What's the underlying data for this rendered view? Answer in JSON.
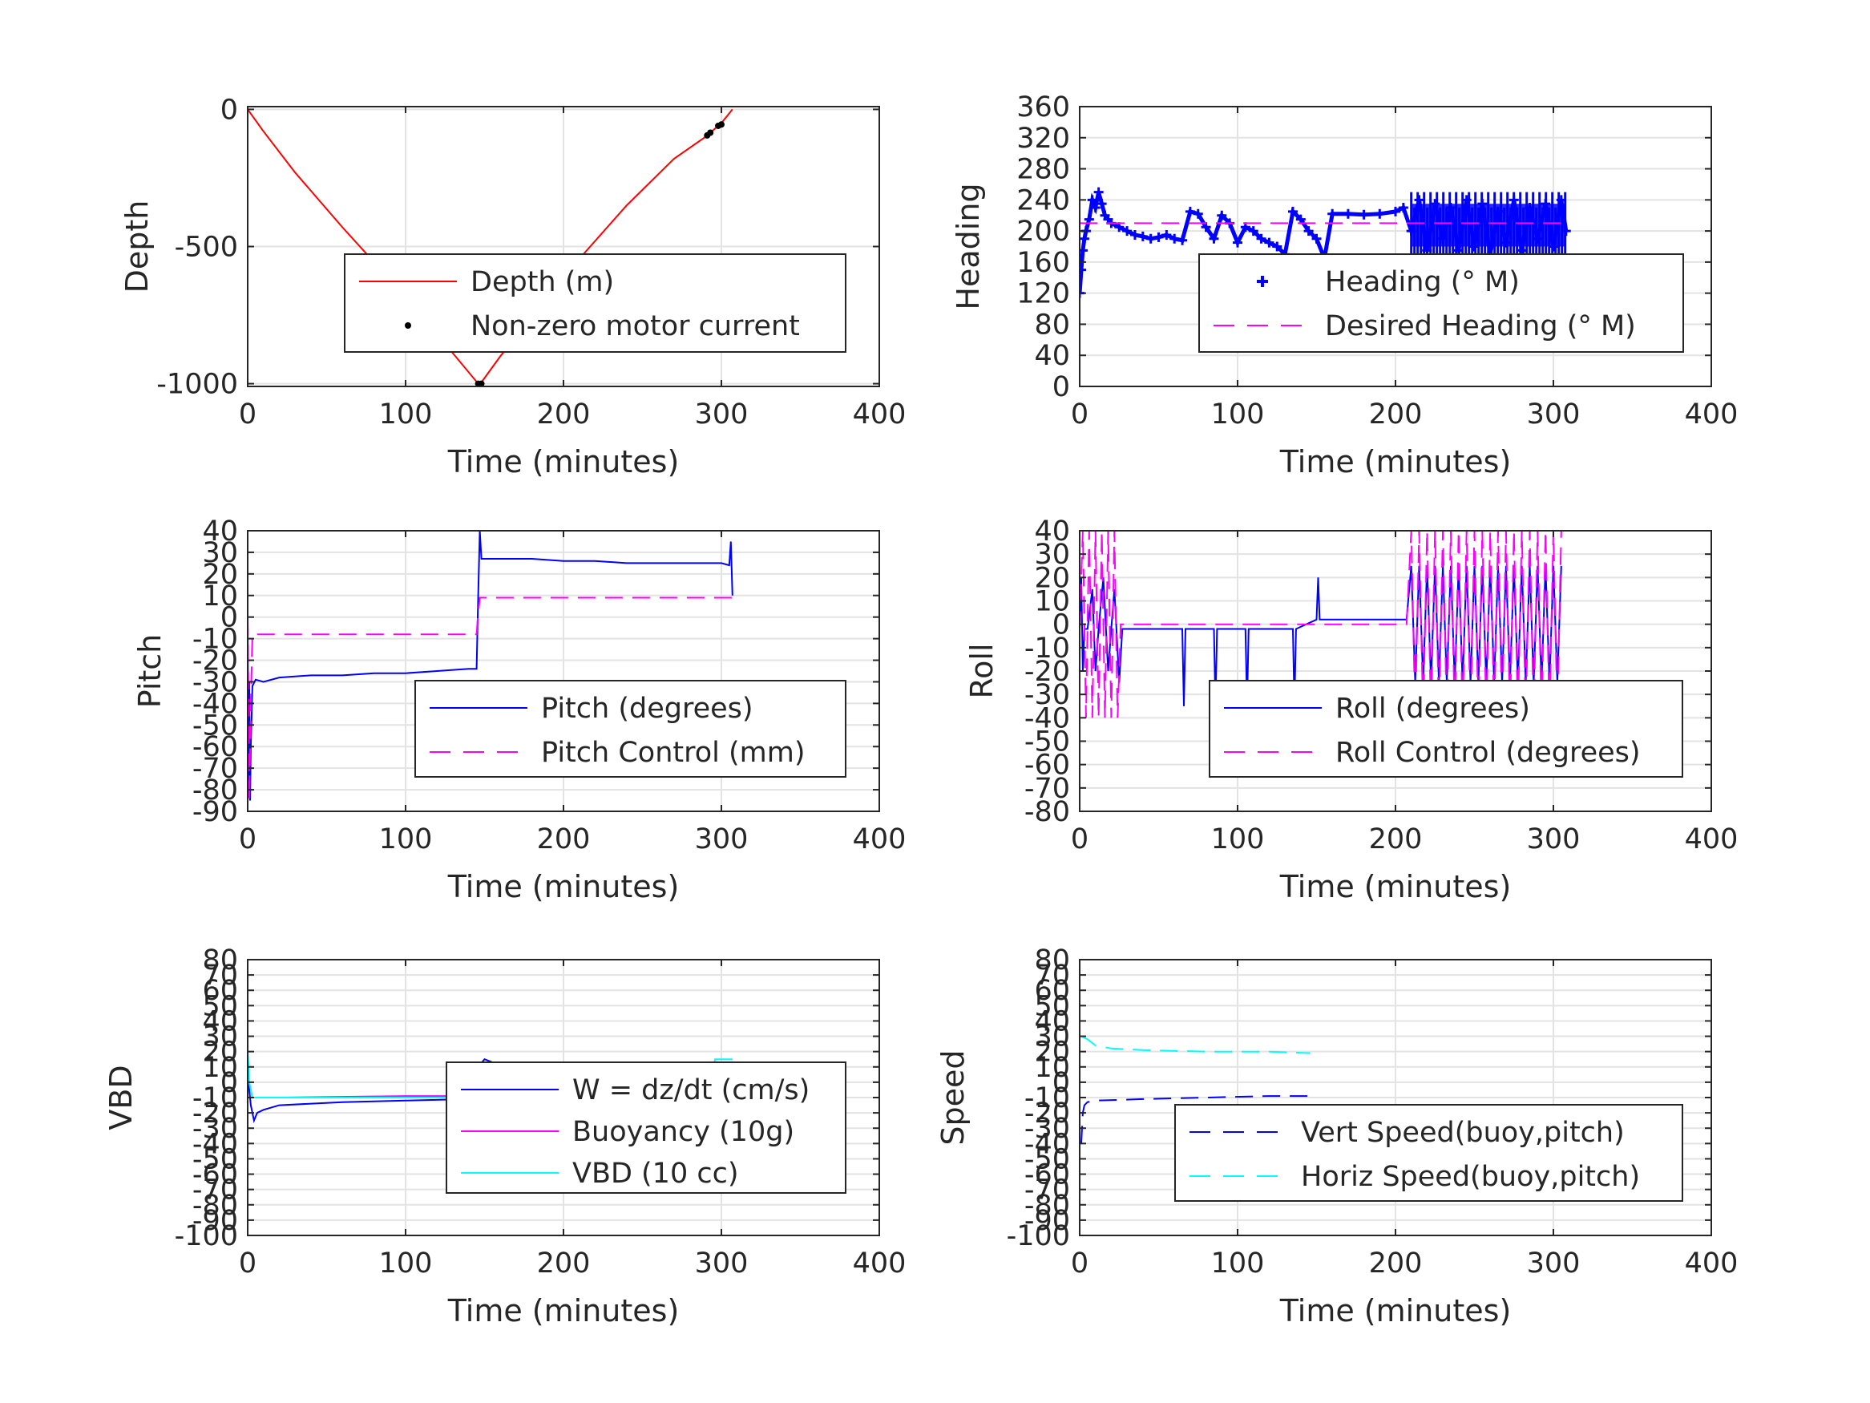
{
  "chart_data": [
    {
      "id": "depth",
      "type": "line",
      "xlabel": "Time (minutes)",
      "ylabel": "Depth",
      "xlim": [
        0,
        400
      ],
      "ylim": [
        -1010,
        10
      ],
      "xticks": [
        0,
        100,
        200,
        300,
        400
      ],
      "yticks": [
        0,
        -500,
        -1000
      ],
      "ytick_labels": [
        "0",
        "-500",
        "-1000"
      ],
      "grid": true,
      "legend": {
        "placement": "center-right"
      },
      "series": [
        {
          "name": "Depth (m)",
          "color": "#ff0000",
          "style": "solid",
          "x": [
            0,
            10,
            30,
            60,
            90,
            120,
            146,
            148,
            160,
            200,
            240,
            270,
            290,
            300,
            307
          ],
          "y": [
            0,
            -80,
            -230,
            -430,
            -620,
            -820,
            -1000,
            -995,
            -900,
            -610,
            -350,
            -180,
            -100,
            -50,
            0
          ]
        },
        {
          "name": "Non-zero motor current",
          "color": "#000000",
          "style": "markers",
          "x": [
            102,
            146,
            148,
            291,
            293,
            298,
            300
          ],
          "y": [
            -790,
            -1000,
            -1000,
            -95,
            -85,
            -60,
            -55
          ]
        }
      ]
    },
    {
      "id": "heading",
      "type": "line",
      "xlabel": "Time (minutes)",
      "ylabel": "Heading",
      "xlim": [
        0,
        400
      ],
      "ylim": [
        0,
        360
      ],
      "xticks": [
        0,
        100,
        200,
        300,
        400
      ],
      "yticks": [
        0,
        40,
        80,
        120,
        160,
        200,
        240,
        280,
        320,
        360
      ],
      "grid": true,
      "legend": {
        "placement": "center-right"
      },
      "series": [
        {
          "name": "Heading (° M)",
          "color": "#0000ff",
          "style": "plus-markers",
          "x": [
            0,
            1,
            2,
            3,
            4,
            6,
            8,
            10,
            12,
            14,
            16,
            18,
            20,
            25,
            30,
            35,
            40,
            45,
            50,
            55,
            60,
            65,
            70,
            75,
            80,
            85,
            90,
            95,
            100,
            105,
            110,
            115,
            120,
            125,
            130,
            135,
            140,
            145,
            150,
            155,
            160,
            170,
            180,
            190,
            200,
            205,
            210,
            215,
            220,
            225,
            230,
            235,
            240,
            245,
            250,
            255,
            260,
            265,
            270,
            275,
            280,
            285,
            290,
            295,
            300,
            305,
            308
          ],
          "y": [
            120,
            150,
            175,
            190,
            200,
            215,
            240,
            230,
            250,
            235,
            220,
            215,
            210,
            205,
            200,
            195,
            193,
            190,
            192,
            195,
            190,
            188,
            225,
            222,
            205,
            190,
            220,
            210,
            185,
            205,
            200,
            190,
            185,
            180,
            170,
            225,
            215,
            200,
            190,
            165,
            222,
            222,
            221,
            222,
            225,
            230,
            200,
            240,
            175,
            235,
            190,
            230,
            175,
            240,
            180,
            235,
            170,
            225,
            185,
            240,
            175,
            230,
            190,
            235,
            180,
            240,
            200
          ],
          "dense_segment": {
            "from": 210,
            "to": 308,
            "min": 160,
            "max": 250
          }
        },
        {
          "name": "Desired Heading (° M)",
          "color": "#ff00ff",
          "style": "dashed",
          "x": [
            0,
            308
          ],
          "y": [
            210,
            210
          ]
        }
      ]
    },
    {
      "id": "pitch",
      "type": "line",
      "xlabel": "Time (minutes)",
      "ylabel": "Pitch",
      "xlim": [
        0,
        400
      ],
      "ylim": [
        -90,
        40
      ],
      "xticks": [
        0,
        100,
        200,
        300,
        400
      ],
      "yticks": [
        40,
        30,
        20,
        10,
        0,
        -10,
        -20,
        -30,
        -40,
        -50,
        -60,
        -70,
        -80,
        -90
      ],
      "grid": true,
      "legend": {
        "placement": "lower-right"
      },
      "series": [
        {
          "name": "Pitch (degrees)",
          "color": "#0000ff",
          "style": "solid",
          "x": [
            0,
            0.5,
            1,
            1.5,
            2,
            3,
            5,
            10,
            20,
            40,
            60,
            80,
            100,
            120,
            140,
            145,
            146,
            147,
            148,
            150,
            160,
            180,
            200,
            220,
            240,
            260,
            280,
            300,
            305,
            306,
            307
          ],
          "y": [
            0,
            -80,
            -30,
            -85,
            -60,
            -32,
            -29,
            -30,
            -28,
            -27,
            -27,
            -26,
            -26,
            -25,
            -24,
            -24,
            10,
            40,
            27,
            27,
            27,
            27,
            26,
            26,
            25,
            25,
            25,
            25,
            24,
            35,
            10
          ]
        },
        {
          "name": "Pitch Control (mm)",
          "color": "#ff00ff",
          "style": "dashed",
          "x": [
            0,
            1,
            2,
            3,
            5,
            20,
            60,
            100,
            140,
            145,
            146,
            147,
            150,
            200,
            250,
            300,
            307
          ],
          "y": [
            0,
            -85,
            -40,
            -8,
            -8,
            -8,
            -8,
            -8,
            -8,
            -8,
            2,
            9,
            9,
            9,
            9,
            9,
            9
          ]
        }
      ]
    },
    {
      "id": "roll",
      "type": "line",
      "xlabel": "Time (minutes)",
      "ylabel": "Roll",
      "xlim": [
        0,
        400
      ],
      "ylim": [
        -80,
        40
      ],
      "xticks": [
        0,
        100,
        200,
        300,
        400
      ],
      "yticks": [
        40,
        30,
        20,
        10,
        0,
        -10,
        -20,
        -30,
        -40,
        -50,
        -60,
        -70,
        -80
      ],
      "grid": true,
      "legend": {
        "placement": "lower-right"
      },
      "series": [
        {
          "name": "Roll (degrees)",
          "color": "#0000ff",
          "style": "solid",
          "x": [
            0,
            1,
            2,
            3,
            5,
            8,
            10,
            12,
            15,
            18,
            20,
            22,
            25,
            27,
            65,
            66,
            67,
            85,
            86,
            87,
            105,
            106,
            107,
            135,
            136,
            137,
            150,
            151,
            152,
            155,
            200,
            207
          ],
          "y": [
            -2,
            20,
            -20,
            -2,
            -2,
            15,
            -20,
            -2,
            20,
            -20,
            -2,
            15,
            -25,
            -2,
            -2,
            -35,
            -2,
            -2,
            -35,
            -2,
            -2,
            -35,
            -2,
            -2,
            -35,
            -2,
            2,
            20,
            2,
            2,
            2,
            2
          ],
          "oscillation": {
            "from": 210,
            "to": 307,
            "amplitude": 25,
            "period": 5
          }
        },
        {
          "name": "Roll Control (degrees)",
          "color": "#ff00ff",
          "style": "dashed",
          "x": [
            0,
            2,
            4,
            6,
            8,
            10,
            12,
            14,
            16,
            18,
            20,
            22,
            24,
            26,
            30,
            150,
            155,
            207
          ],
          "y": [
            -2,
            40,
            -40,
            40,
            -40,
            40,
            -40,
            40,
            -40,
            40,
            -40,
            40,
            -40,
            0,
            0,
            0,
            0,
            0
          ],
          "oscillation": {
            "from": 210,
            "to": 307,
            "amplitude": 40,
            "period": 5
          }
        }
      ]
    },
    {
      "id": "vbd",
      "type": "line",
      "xlabel": "Time (minutes)",
      "ylabel": "VBD",
      "xlim": [
        0,
        400
      ],
      "ylim": [
        -100,
        80
      ],
      "xticks": [
        0,
        100,
        200,
        300,
        400
      ],
      "yticks": [
        80,
        70,
        60,
        50,
        40,
        30,
        20,
        10,
        0,
        -10,
        -20,
        -30,
        -40,
        -50,
        -60,
        -70,
        -80,
        -90,
        -100
      ],
      "grid": true,
      "legend": {
        "placement": "center-right"
      },
      "series": [
        {
          "name": "W = dz/dt (cm/s)",
          "color": "#0000ff",
          "style": "solid",
          "x": [
            0,
            1,
            2,
            4,
            6,
            10,
            20,
            60,
            100,
            140,
            145,
            146,
            150,
            155,
            160,
            200,
            250,
            300,
            307
          ],
          "y": [
            0,
            -5,
            -15,
            -25,
            -20,
            -18,
            -15,
            -13,
            -12,
            -11,
            -10,
            10,
            15,
            13,
            12,
            11,
            10,
            10,
            12
          ]
        },
        {
          "name": "Buoyancy (10g)",
          "color": "#ff00ff",
          "style": "solid",
          "x": [
            0,
            3,
            20,
            100,
            145,
            146,
            150,
            200,
            300,
            307
          ],
          "y": [
            -10,
            -10,
            -10,
            -9,
            -9,
            12,
            12,
            12,
            12,
            12
          ]
        },
        {
          "name": "VBD (10 cc)",
          "color": "#00ffff",
          "style": "solid",
          "x": [
            0,
            1,
            3,
            20,
            100,
            145,
            146,
            150,
            200,
            295,
            296,
            307
          ],
          "y": [
            20,
            0,
            -10,
            -10,
            -10,
            -10,
            10,
            10,
            10,
            10,
            15,
            15
          ]
        }
      ]
    },
    {
      "id": "speed",
      "type": "line",
      "xlabel": "Time (minutes)",
      "ylabel": "Speed",
      "xlim": [
        0,
        400
      ],
      "ylim": [
        -100,
        80
      ],
      "xticks": [
        0,
        100,
        200,
        300,
        400
      ],
      "yticks": [
        80,
        70,
        60,
        50,
        40,
        30,
        20,
        10,
        0,
        -10,
        -20,
        -30,
        -40,
        -50,
        -60,
        -70,
        -80,
        -90,
        -100
      ],
      "grid": true,
      "legend": {
        "placement": "lower-right"
      },
      "series": [
        {
          "name": "Vert Speed(buoy,pitch)",
          "color": "#0000ff",
          "style": "dashed",
          "x": [
            1,
            2,
            3,
            5,
            10,
            40,
            80,
            120,
            146
          ],
          "y": [
            -40,
            -20,
            -15,
            -13,
            -12,
            -11,
            -10,
            -9,
            -9
          ]
        },
        {
          "name": "Horiz Speed(buoy,pitch)",
          "color": "#00ffff",
          "style": "dashed",
          "x": [
            1,
            5,
            10,
            20,
            40,
            80,
            120,
            146
          ],
          "y": [
            30,
            28,
            24,
            22,
            21,
            20,
            20,
            19
          ]
        }
      ]
    }
  ]
}
